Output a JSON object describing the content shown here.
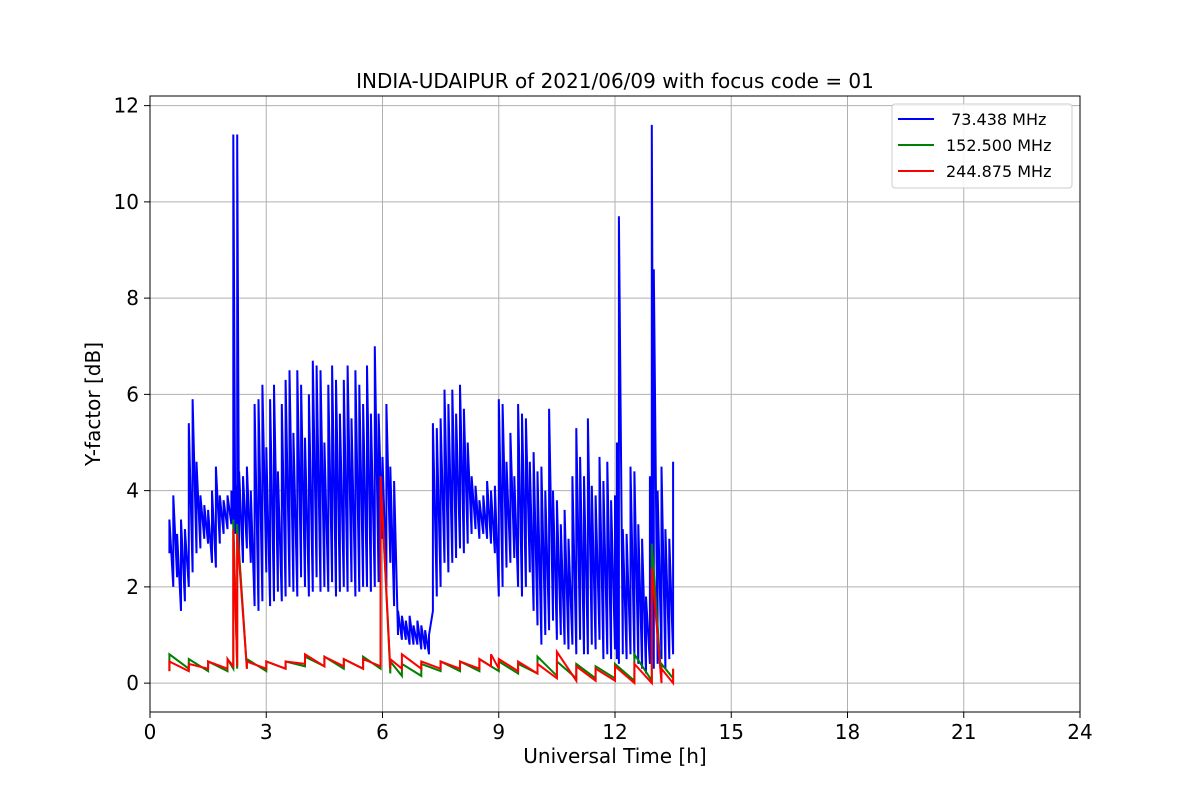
{
  "chart_data": {
    "type": "line",
    "title": "INDIA-UDAIPUR of 2021/06/09 with focus code = 01",
    "xlabel": "Universal Time [h]",
    "ylabel": "Y-factor [dB]",
    "xlim": [
      0,
      24
    ],
    "ylim": [
      -0.6,
      12.2
    ],
    "xticks": [
      0,
      3,
      6,
      9,
      12,
      15,
      18,
      21,
      24
    ],
    "yticks": [
      0,
      2,
      4,
      6,
      8,
      10,
      12
    ],
    "grid": true,
    "legend_position": "top-right",
    "series": [
      {
        "name": " 73.438 MHz",
        "color": "#0000ff",
        "band": [
          [
            0.5,
            2.7,
            3.4
          ],
          [
            0.6,
            2.0,
            3.9
          ],
          [
            0.7,
            2.2,
            3.1
          ],
          [
            0.8,
            1.5,
            3.4
          ],
          [
            0.9,
            1.7,
            3.2
          ],
          [
            1.0,
            2.0,
            5.4
          ],
          [
            1.1,
            2.3,
            5.9
          ],
          [
            1.2,
            2.7,
            4.6
          ],
          [
            1.3,
            2.8,
            3.9
          ],
          [
            1.4,
            3.0,
            3.7
          ],
          [
            1.5,
            2.9,
            3.6
          ],
          [
            1.6,
            2.5,
            4.0
          ],
          [
            1.7,
            2.4,
            4.5
          ],
          [
            1.8,
            2.9,
            3.9
          ],
          [
            1.9,
            3.1,
            3.8
          ],
          [
            2.0,
            3.2,
            3.9
          ],
          [
            2.1,
            3.3,
            4.0
          ],
          [
            2.15,
            3.4,
            11.4
          ],
          [
            2.2,
            3.1,
            4.1
          ],
          [
            2.25,
            3.3,
            11.4
          ],
          [
            2.3,
            2.6,
            4.4
          ],
          [
            2.4,
            2.5,
            4.3
          ],
          [
            2.5,
            2.8,
            4.5
          ],
          [
            2.6,
            2.5,
            4.0
          ],
          [
            2.7,
            1.6,
            5.8
          ],
          [
            2.8,
            1.5,
            5.9
          ],
          [
            2.9,
            1.7,
            6.2
          ],
          [
            3.0,
            2.3,
            4.9
          ],
          [
            3.1,
            1.6,
            5.9
          ],
          [
            3.2,
            1.7,
            6.2
          ],
          [
            3.3,
            1.9,
            4.4
          ],
          [
            3.4,
            1.7,
            5.8
          ],
          [
            3.5,
            1.8,
            6.3
          ],
          [
            3.6,
            2.0,
            6.5
          ],
          [
            3.7,
            1.9,
            5.2
          ],
          [
            3.8,
            1.8,
            6.5
          ],
          [
            3.9,
            2.2,
            6.2
          ],
          [
            4.0,
            2.0,
            5.1
          ],
          [
            4.1,
            1.8,
            6.0
          ],
          [
            4.2,
            1.9,
            6.7
          ],
          [
            4.3,
            2.2,
            6.6
          ],
          [
            4.4,
            1.9,
            6.5
          ],
          [
            4.5,
            2.0,
            5.0
          ],
          [
            4.6,
            1.9,
            6.2
          ],
          [
            4.7,
            2.1,
            6.6
          ],
          [
            4.8,
            1.8,
            6.3
          ],
          [
            4.9,
            1.9,
            5.6
          ],
          [
            5.0,
            2.0,
            6.3
          ],
          [
            5.1,
            1.9,
            6.6
          ],
          [
            5.2,
            2.1,
            5.5
          ],
          [
            5.3,
            1.8,
            6.5
          ],
          [
            5.4,
            1.9,
            6.2
          ],
          [
            5.5,
            2.0,
            5.8
          ],
          [
            5.6,
            2.0,
            6.6
          ],
          [
            5.7,
            1.9,
            5.6
          ],
          [
            5.8,
            2.0,
            7.0
          ],
          [
            5.9,
            2.1,
            5.6
          ],
          [
            6.0,
            3.0,
            4.7
          ],
          [
            6.1,
            2.0,
            5.8
          ],
          [
            6.2,
            2.5,
            4.5
          ],
          [
            6.3,
            1.6,
            4.2
          ],
          [
            6.4,
            1.0,
            1.5
          ],
          [
            6.5,
            0.9,
            1.4
          ],
          [
            6.6,
            0.9,
            1.3
          ],
          [
            6.7,
            0.8,
            1.4
          ],
          [
            6.8,
            0.8,
            1.2
          ],
          [
            6.9,
            0.8,
            1.3
          ],
          [
            7.0,
            0.7,
            1.2
          ],
          [
            7.1,
            0.7,
            1.1
          ],
          [
            7.2,
            0.6,
            1.0
          ],
          [
            7.3,
            1.5,
            5.4
          ],
          [
            7.4,
            1.8,
            5.3
          ],
          [
            7.5,
            2.0,
            5.5
          ],
          [
            7.6,
            2.5,
            6.1
          ],
          [
            7.7,
            2.3,
            5.8
          ],
          [
            7.8,
            2.5,
            6.1
          ],
          [
            7.9,
            2.6,
            5.6
          ],
          [
            8.0,
            2.8,
            6.2
          ],
          [
            8.1,
            2.7,
            5.7
          ],
          [
            8.2,
            2.9,
            5.0
          ],
          [
            8.3,
            3.1,
            4.3
          ],
          [
            8.4,
            3.2,
            4.1
          ],
          [
            8.5,
            3.0,
            3.8
          ],
          [
            8.6,
            3.1,
            3.9
          ],
          [
            8.7,
            3.0,
            4.2
          ],
          [
            8.8,
            2.9,
            4.0
          ],
          [
            8.9,
            2.7,
            4.1
          ],
          [
            9.0,
            1.8,
            5.9
          ],
          [
            9.1,
            2.0,
            5.8
          ],
          [
            9.2,
            2.4,
            4.6
          ],
          [
            9.3,
            2.5,
            5.2
          ],
          [
            9.4,
            2.6,
            4.3
          ],
          [
            9.5,
            2.0,
            5.8
          ],
          [
            9.6,
            1.8,
            5.6
          ],
          [
            9.7,
            2.0,
            5.5
          ],
          [
            9.8,
            2.3,
            4.6
          ],
          [
            9.9,
            1.5,
            4.8
          ],
          [
            10.0,
            1.2,
            4.4
          ],
          [
            10.1,
            0.8,
            4.5
          ],
          [
            10.2,
            1.0,
            4.0
          ],
          [
            10.3,
            1.1,
            5.7
          ],
          [
            10.4,
            1.3,
            4.0
          ],
          [
            10.5,
            0.9,
            3.8
          ],
          [
            10.6,
            1.0,
            3.3
          ],
          [
            10.7,
            0.8,
            3.6
          ],
          [
            10.8,
            0.7,
            3.0
          ],
          [
            10.9,
            0.8,
            4.3
          ],
          [
            11.0,
            0.6,
            5.3
          ],
          [
            11.1,
            0.9,
            4.7
          ],
          [
            11.2,
            0.6,
            4.3
          ],
          [
            11.3,
            0.6,
            5.5
          ],
          [
            11.4,
            0.8,
            4.1
          ],
          [
            11.5,
            0.7,
            3.9
          ],
          [
            11.6,
            0.9,
            4.7
          ],
          [
            11.7,
            0.5,
            4.2
          ],
          [
            11.8,
            0.6,
            4.6
          ],
          [
            11.9,
            0.5,
            3.8
          ],
          [
            12.0,
            0.7,
            3.9
          ],
          [
            12.05,
            0.5,
            5.0
          ],
          [
            12.1,
            0.4,
            9.7
          ],
          [
            12.2,
            0.6,
            3.2
          ],
          [
            12.3,
            0.5,
            3.1
          ],
          [
            12.4,
            0.6,
            4.5
          ],
          [
            12.5,
            0.5,
            4.4
          ],
          [
            12.6,
            0.4,
            3.3
          ],
          [
            12.7,
            0.3,
            3.0
          ],
          [
            12.8,
            0.2,
            1.8
          ],
          [
            12.9,
            0.4,
            4.3
          ],
          [
            12.95,
            0.5,
            11.6
          ],
          [
            13.0,
            0.3,
            8.6
          ],
          [
            13.1,
            0.4,
            4.0
          ],
          [
            13.2,
            0.5,
            4.5
          ],
          [
            13.3,
            0.3,
            3.2
          ],
          [
            13.4,
            0.5,
            3.0
          ],
          [
            13.5,
            0.6,
            4.6
          ]
        ]
      },
      {
        "name": "152.500 MHz",
        "color": "#008000",
        "band": [
          [
            0.5,
            0.25,
            0.6
          ],
          [
            1.0,
            0.3,
            0.5
          ],
          [
            1.5,
            0.25,
            0.45
          ],
          [
            2.0,
            0.25,
            0.5
          ],
          [
            2.15,
            0.3,
            3.4
          ],
          [
            2.25,
            0.3,
            3.3
          ],
          [
            2.5,
            0.3,
            0.5
          ],
          [
            3.0,
            0.25,
            0.45
          ],
          [
            3.5,
            0.3,
            0.45
          ],
          [
            4.0,
            0.35,
            0.55
          ],
          [
            4.5,
            0.35,
            0.55
          ],
          [
            5.0,
            0.3,
            0.5
          ],
          [
            5.5,
            0.3,
            0.55
          ],
          [
            5.95,
            0.3,
            4.3
          ],
          [
            6.2,
            0.2,
            0.45
          ],
          [
            6.5,
            0.15,
            0.4
          ],
          [
            7.0,
            0.15,
            0.4
          ],
          [
            7.5,
            0.25,
            0.45
          ],
          [
            8.0,
            0.25,
            0.45
          ],
          [
            8.5,
            0.25,
            0.5
          ],
          [
            9.0,
            0.25,
            0.45
          ],
          [
            9.5,
            0.2,
            0.4
          ],
          [
            10.0,
            0.2,
            0.55
          ],
          [
            10.5,
            0.15,
            0.45
          ],
          [
            11.0,
            0.1,
            0.4
          ],
          [
            11.5,
            0.1,
            0.35
          ],
          [
            12.0,
            0.1,
            0.4
          ],
          [
            12.5,
            0.05,
            0.6
          ],
          [
            12.95,
            0.05,
            2.9
          ],
          [
            13.2,
            0.05,
            0.4
          ],
          [
            13.5,
            0.1,
            0.3
          ]
        ]
      },
      {
        "name": "244.875 MHz",
        "color": "#ff0000",
        "band": [
          [
            0.5,
            0.25,
            0.45
          ],
          [
            1.0,
            0.25,
            0.4
          ],
          [
            1.5,
            0.3,
            0.45
          ],
          [
            2.0,
            0.3,
            0.5
          ],
          [
            2.15,
            0.35,
            3.2
          ],
          [
            2.25,
            0.35,
            3.1
          ],
          [
            2.5,
            0.3,
            0.45
          ],
          [
            3.0,
            0.3,
            0.45
          ],
          [
            3.5,
            0.3,
            0.45
          ],
          [
            4.0,
            0.4,
            0.6
          ],
          [
            4.5,
            0.35,
            0.55
          ],
          [
            5.0,
            0.35,
            0.5
          ],
          [
            5.5,
            0.3,
            0.5
          ],
          [
            5.95,
            0.35,
            4.3
          ],
          [
            6.2,
            0.3,
            0.5
          ],
          [
            6.5,
            0.3,
            0.6
          ],
          [
            7.0,
            0.3,
            0.45
          ],
          [
            7.5,
            0.3,
            0.45
          ],
          [
            8.0,
            0.3,
            0.45
          ],
          [
            8.5,
            0.3,
            0.5
          ],
          [
            8.8,
            0.35,
            0.6
          ],
          [
            9.0,
            0.3,
            0.5
          ],
          [
            9.5,
            0.25,
            0.45
          ],
          [
            10.0,
            0.2,
            0.4
          ],
          [
            10.5,
            0.1,
            0.65
          ],
          [
            11.0,
            0.05,
            0.35
          ],
          [
            11.5,
            0.05,
            0.3
          ],
          [
            12.0,
            0.05,
            0.35
          ],
          [
            12.5,
            0.0,
            0.4
          ],
          [
            12.95,
            0.0,
            2.4
          ],
          [
            13.2,
            0.0,
            0.3
          ],
          [
            13.5,
            0.0,
            0.3
          ]
        ]
      }
    ]
  }
}
